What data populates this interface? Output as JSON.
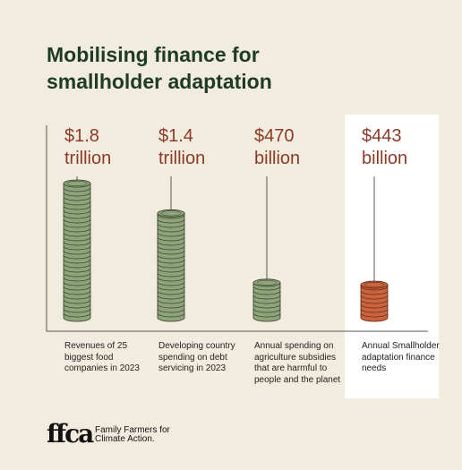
{
  "chart_data": {
    "type": "bar",
    "title": "Mobilising finance for smallholder adaptation",
    "categories": [
      "Revenues of 25 biggest food companies in 2023",
      "Developing country spending on debt servicing in 2023",
      "Annual spending on agriculture subsidies that are harmful to people and the planet",
      "Annual Smallholder adaptation finance needs"
    ],
    "values": [
      1800,
      1400,
      470,
      443
    ],
    "value_labels": [
      "$1.8 trillion",
      "$1.4 trillion",
      "$470 billion",
      "$443 billion"
    ],
    "colors": [
      "#8fa37a",
      "#8fa37a",
      "#8fa37a",
      "#c9643f"
    ],
    "highlight_index": 3
  },
  "logo": {
    "mark": "ffca",
    "text": "Family Farmers for Climate Action."
  }
}
